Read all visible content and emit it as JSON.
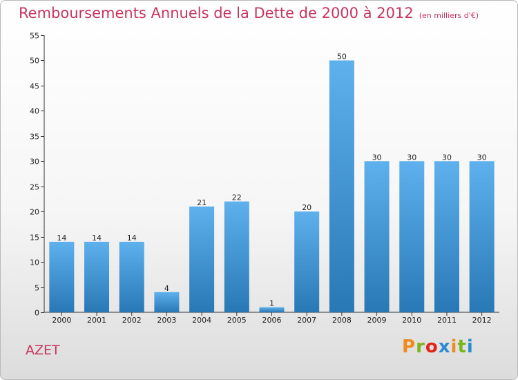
{
  "page": {
    "title": "Remboursements Annuels de la Dette de 2000 à 2012",
    "subtitle": "(en milliers d'€)",
    "commune": "AZET",
    "logo": {
      "text": "Proxiti",
      "colors": [
        "#f08a1c",
        "#7ab51d",
        "#e2231a",
        "#2a8bd0",
        "#f08a1c",
        "#7ab51d",
        "#2a8bd0"
      ]
    }
  },
  "chart_data": {
    "type": "bar",
    "title": "Remboursements Annuels de la Dette de 2000 à 2012",
    "subtitle": "(en milliers d'€)",
    "xlabel": "",
    "ylabel": "",
    "categories": [
      "2000",
      "2001",
      "2002",
      "2003",
      "2004",
      "2005",
      "2006",
      "2007",
      "2008",
      "2009",
      "2010",
      "2011",
      "2012"
    ],
    "values": [
      14,
      14,
      14,
      4,
      21,
      22,
      1,
      20,
      50,
      30,
      30,
      30,
      30
    ],
    "ylim": [
      0,
      55
    ],
    "yticks": [
      0,
      5,
      10,
      15,
      20,
      25,
      30,
      35,
      40,
      45,
      50,
      55
    ],
    "grid": false,
    "legend": "none",
    "bar_color_top": "#5eb1ec",
    "bar_color_bottom": "#2878b6"
  }
}
